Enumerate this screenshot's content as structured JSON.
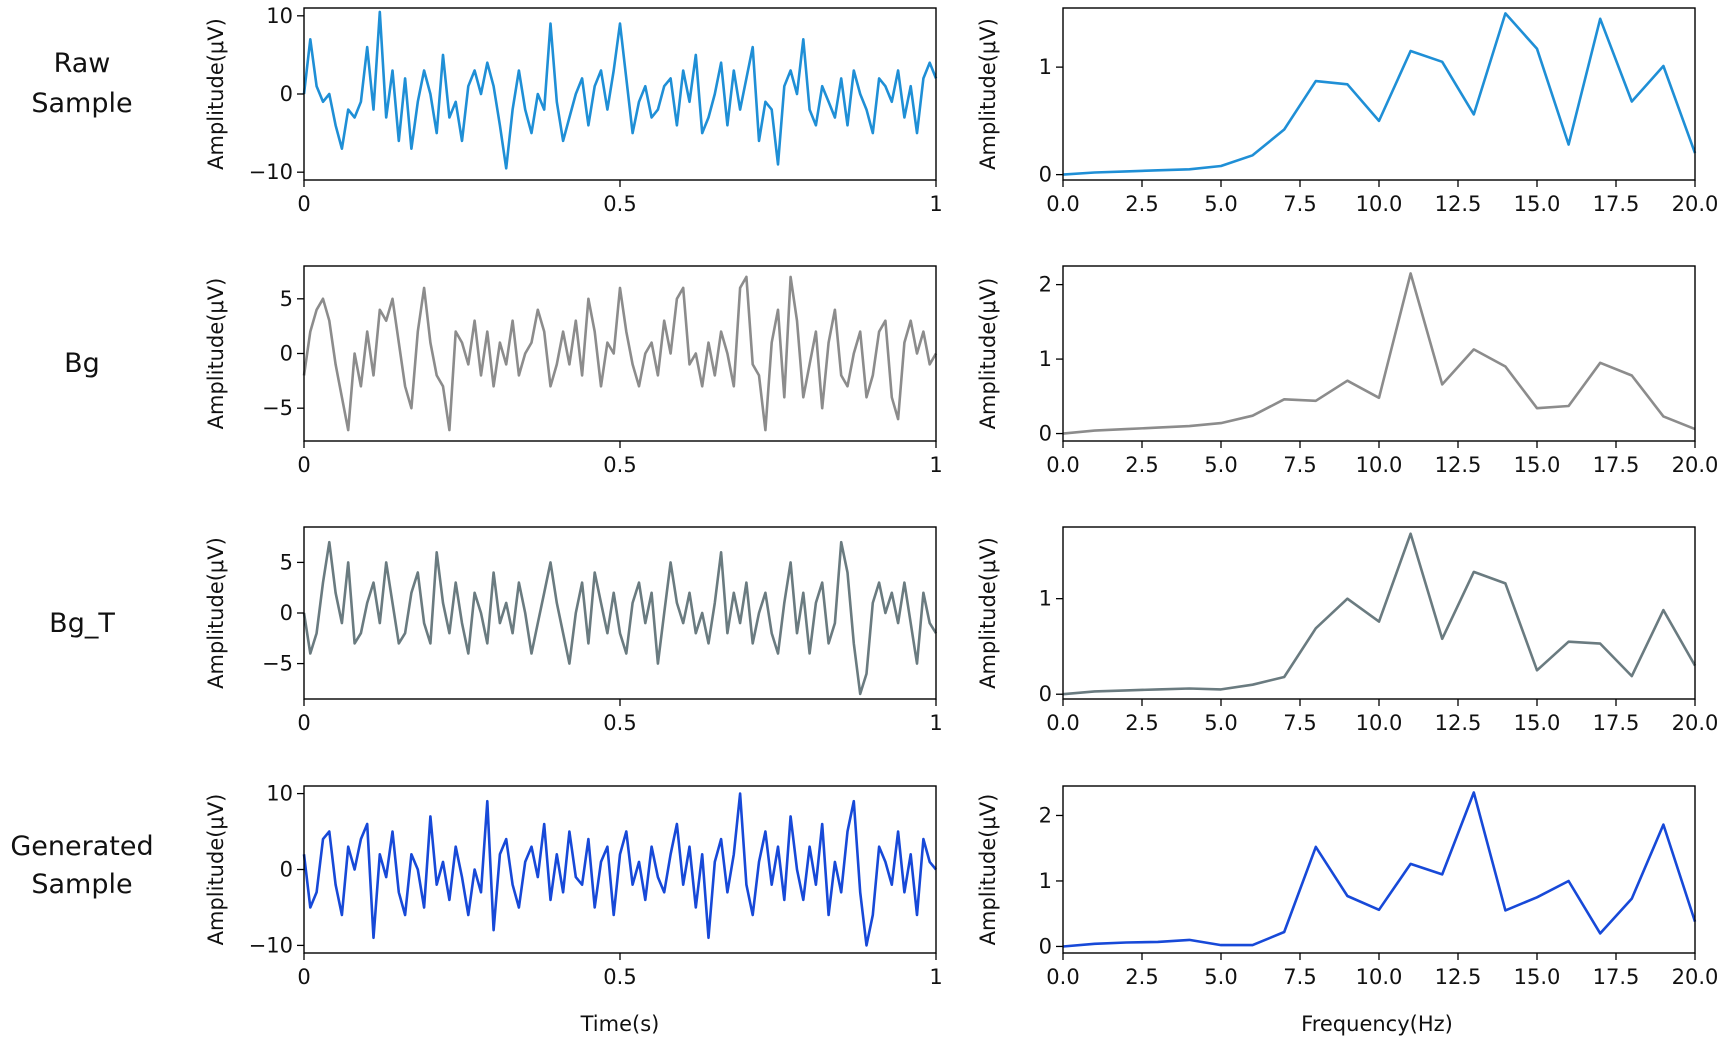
{
  "colors": {
    "raw": "#1f8fd6",
    "bg": "#8c8c8c",
    "bg_t": "#6a7b80",
    "generated": "#1749d8"
  },
  "row_labels": [
    [
      "Raw",
      "Sample"
    ],
    [
      "Bg"
    ],
    [
      "Bg_T"
    ],
    [
      "Generated",
      "Sample"
    ]
  ],
  "x_time_label": "Time(s)",
  "x_freq_label": "Frequency(Hz)",
  "chart_data": [
    {
      "type": "line",
      "panel": "time",
      "row": 0,
      "ylabel": "Amplitude(μV)",
      "xlabel": "",
      "xlim": [
        0,
        1
      ],
      "ylim": [
        -11,
        11
      ],
      "xticks": [
        0,
        0.5,
        1
      ],
      "xtick_labels": [
        "0",
        "0.5",
        "1"
      ],
      "yticks": [
        -10,
        0,
        10
      ],
      "ytick_labels": [
        "−10",
        "0",
        "10"
      ],
      "color_key": "raw",
      "x": [
        0,
        0.01,
        0.02,
        0.03,
        0.04,
        0.05,
        0.06,
        0.07,
        0.08,
        0.09,
        0.1,
        0.11,
        0.12,
        0.13,
        0.14,
        0.15,
        0.16,
        0.17,
        0.18,
        0.19,
        0.2,
        0.21,
        0.22,
        0.23,
        0.24,
        0.25,
        0.26,
        0.27,
        0.28,
        0.29,
        0.3,
        0.31,
        0.32,
        0.33,
        0.34,
        0.35,
        0.36,
        0.37,
        0.38,
        0.39,
        0.4,
        0.41,
        0.42,
        0.43,
        0.44,
        0.45,
        0.46,
        0.47,
        0.48,
        0.49,
        0.5,
        0.51,
        0.52,
        0.53,
        0.54,
        0.55,
        0.56,
        0.57,
        0.58,
        0.59,
        0.6,
        0.61,
        0.62,
        0.63,
        0.64,
        0.65,
        0.66,
        0.67,
        0.68,
        0.69,
        0.7,
        0.71,
        0.72,
        0.73,
        0.74,
        0.75,
        0.76,
        0.77,
        0.78,
        0.79,
        0.8,
        0.81,
        0.82,
        0.83,
        0.84,
        0.85,
        0.86,
        0.87,
        0.88,
        0.89,
        0.9,
        0.91,
        0.92,
        0.93,
        0.94,
        0.95,
        0.96,
        0.97,
        0.98,
        0.99,
        1
      ],
      "y": [
        0,
        7,
        1,
        -1,
        0,
        -4,
        -7,
        -2,
        -3,
        -1,
        6,
        -2,
        10.5,
        -3,
        3,
        -6,
        2,
        -7,
        -1,
        3,
        0,
        -5,
        5,
        -3,
        -1,
        -6,
        1,
        3,
        0,
        4,
        1,
        -4,
        -9.5,
        -2,
        3,
        -2,
        -5,
        0,
        -2,
        9,
        -1,
        -6,
        -3,
        0,
        2,
        -4,
        1,
        3,
        -2,
        3,
        9,
        2,
        -5,
        -1,
        1,
        -3,
        -2,
        1,
        2,
        -4,
        3,
        -1,
        5,
        -5,
        -3,
        0,
        4,
        -4,
        3,
        -2,
        2,
        6,
        -6,
        -1,
        -2,
        -9,
        1,
        3,
        0,
        7,
        -2,
        -4,
        1,
        -1,
        -3,
        2,
        -4,
        3,
        0,
        -2,
        -5,
        2,
        1,
        -1,
        3,
        -3,
        1,
        -5,
        2,
        4,
        2
      ]
    },
    {
      "type": "line",
      "panel": "freq",
      "row": 0,
      "ylabel": "Amplitude(μV)",
      "xlabel": "",
      "xlim": [
        0,
        20
      ],
      "ylim": [
        -0.05,
        1.55
      ],
      "xticks": [
        0,
        2.5,
        5,
        7.5,
        10,
        12.5,
        15,
        17.5,
        20
      ],
      "xtick_labels": [
        "0.0",
        "2.5",
        "5.0",
        "7.5",
        "10.0",
        "12.5",
        "15.0",
        "17.5",
        "20.0"
      ],
      "yticks": [
        0,
        1
      ],
      "ytick_labels": [
        "0",
        "1"
      ],
      "color_key": "raw",
      "x": [
        0,
        1,
        2,
        3,
        4,
        5,
        6,
        7,
        8,
        9,
        10,
        11,
        12,
        13,
        14,
        15,
        16,
        17,
        18,
        19,
        20
      ],
      "y": [
        0,
        0.02,
        0.03,
        0.04,
        0.05,
        0.08,
        0.18,
        0.42,
        0.87,
        0.84,
        0.5,
        1.15,
        1.05,
        0.56,
        1.5,
        1.17,
        0.28,
        1.45,
        0.68,
        1.01,
        0.2
      ]
    },
    {
      "type": "line",
      "panel": "time",
      "row": 1,
      "ylabel": "Amplitude(μV)",
      "xlabel": "",
      "xlim": [
        0,
        1
      ],
      "ylim": [
        -8,
        8
      ],
      "xticks": [
        0,
        0.5,
        1
      ],
      "xtick_labels": [
        "0",
        "0.5",
        "1"
      ],
      "yticks": [
        -5,
        0,
        5
      ],
      "ytick_labels": [
        "−5",
        "0",
        "5"
      ],
      "color_key": "bg",
      "x": [
        0,
        0.01,
        0.02,
        0.03,
        0.04,
        0.05,
        0.06,
        0.07,
        0.08,
        0.09,
        0.1,
        0.11,
        0.12,
        0.13,
        0.14,
        0.15,
        0.16,
        0.17,
        0.18,
        0.19,
        0.2,
        0.21,
        0.22,
        0.23,
        0.24,
        0.25,
        0.26,
        0.27,
        0.28,
        0.29,
        0.3,
        0.31,
        0.32,
        0.33,
        0.34,
        0.35,
        0.36,
        0.37,
        0.38,
        0.39,
        0.4,
        0.41,
        0.42,
        0.43,
        0.44,
        0.45,
        0.46,
        0.47,
        0.48,
        0.49,
        0.5,
        0.51,
        0.52,
        0.53,
        0.54,
        0.55,
        0.56,
        0.57,
        0.58,
        0.59,
        0.6,
        0.61,
        0.62,
        0.63,
        0.64,
        0.65,
        0.66,
        0.67,
        0.68,
        0.69,
        0.7,
        0.71,
        0.72,
        0.73,
        0.74,
        0.75,
        0.76,
        0.77,
        0.78,
        0.79,
        0.8,
        0.81,
        0.82,
        0.83,
        0.84,
        0.85,
        0.86,
        0.87,
        0.88,
        0.89,
        0.9,
        0.91,
        0.92,
        0.93,
        0.94,
        0.95,
        0.96,
        0.97,
        0.98,
        0.99,
        1
      ],
      "y": [
        -2,
        2,
        4,
        5,
        3,
        -1,
        -4,
        -7,
        0,
        -3,
        2,
        -2,
        4,
        3,
        5,
        1,
        -3,
        -5,
        2,
        6,
        1,
        -2,
        -3,
        -7,
        2,
        1,
        -1,
        3,
        -2,
        2,
        -3,
        1,
        -1,
        3,
        -2,
        0,
        1,
        4,
        2,
        -3,
        -1,
        2,
        -1,
        3,
        -2,
        5,
        2,
        -3,
        1,
        0,
        6,
        2,
        -1,
        -3,
        0,
        1,
        -2,
        3,
        0,
        5,
        6,
        -1,
        0,
        -3,
        1,
        -2,
        2,
        0,
        -3,
        6,
        7,
        -1,
        -2,
        -7,
        1,
        4,
        -4,
        7,
        3,
        -4,
        -1,
        2,
        -5,
        1,
        4,
        -2,
        -3,
        0,
        2,
        -4,
        -2,
        2,
        3,
        -4,
        -6,
        1,
        3,
        0,
        2,
        -1,
        0
      ]
    },
    {
      "type": "line",
      "panel": "freq",
      "row": 1,
      "ylabel": "Amplitude(μV)",
      "xlabel": "",
      "xlim": [
        0,
        20
      ],
      "ylim": [
        -0.1,
        2.25
      ],
      "xticks": [
        0,
        2.5,
        5,
        7.5,
        10,
        12.5,
        15,
        17.5,
        20
      ],
      "xtick_labels": [
        "0.0",
        "2.5",
        "5.0",
        "7.5",
        "10.0",
        "12.5",
        "15.0",
        "17.5",
        "20.0"
      ],
      "yticks": [
        0,
        1,
        2
      ],
      "ytick_labels": [
        "0",
        "1",
        "2"
      ],
      "color_key": "bg",
      "x": [
        0,
        1,
        2,
        3,
        4,
        5,
        6,
        7,
        8,
        9,
        10,
        11,
        12,
        13,
        14,
        15,
        16,
        17,
        18,
        19,
        20
      ],
      "y": [
        0,
        0.04,
        0.06,
        0.08,
        0.1,
        0.14,
        0.24,
        0.46,
        0.44,
        0.71,
        0.48,
        2.15,
        0.66,
        1.13,
        0.9,
        0.34,
        0.37,
        0.95,
        0.78,
        0.23,
        0.06
      ]
    },
    {
      "type": "line",
      "panel": "time",
      "row": 2,
      "ylabel": "Amplitude(μV)",
      "xlabel": "",
      "xlim": [
        0,
        1
      ],
      "ylim": [
        -8.5,
        8.5
      ],
      "xticks": [
        0,
        0.5,
        1
      ],
      "xtick_labels": [
        "0",
        "0.5",
        "1"
      ],
      "yticks": [
        -5,
        0,
        5
      ],
      "ytick_labels": [
        "−5",
        "0",
        "5"
      ],
      "color_key": "bg_t",
      "x": [
        0,
        0.01,
        0.02,
        0.03,
        0.04,
        0.05,
        0.06,
        0.07,
        0.08,
        0.09,
        0.1,
        0.11,
        0.12,
        0.13,
        0.14,
        0.15,
        0.16,
        0.17,
        0.18,
        0.19,
        0.2,
        0.21,
        0.22,
        0.23,
        0.24,
        0.25,
        0.26,
        0.27,
        0.28,
        0.29,
        0.3,
        0.31,
        0.32,
        0.33,
        0.34,
        0.35,
        0.36,
        0.37,
        0.38,
        0.39,
        0.4,
        0.41,
        0.42,
        0.43,
        0.44,
        0.45,
        0.46,
        0.47,
        0.48,
        0.49,
        0.5,
        0.51,
        0.52,
        0.53,
        0.54,
        0.55,
        0.56,
        0.57,
        0.58,
        0.59,
        0.6,
        0.61,
        0.62,
        0.63,
        0.64,
        0.65,
        0.66,
        0.67,
        0.68,
        0.69,
        0.7,
        0.71,
        0.72,
        0.73,
        0.74,
        0.75,
        0.76,
        0.77,
        0.78,
        0.79,
        0.8,
        0.81,
        0.82,
        0.83,
        0.84,
        0.85,
        0.86,
        0.87,
        0.88,
        0.89,
        0.9,
        0.91,
        0.92,
        0.93,
        0.94,
        0.95,
        0.96,
        0.97,
        0.98,
        0.99,
        1
      ],
      "y": [
        0,
        -4,
        -2,
        3,
        7,
        2,
        -1,
        5,
        -3,
        -2,
        1,
        3,
        -1,
        5,
        1,
        -3,
        -2,
        2,
        4,
        -1,
        -3,
        6,
        1,
        -2,
        3,
        -1,
        -4,
        2,
        0,
        -3,
        4,
        -1,
        1,
        -2,
        3,
        0,
        -4,
        -1,
        2,
        5,
        1,
        -2,
        -5,
        0,
        3,
        -3,
        4,
        1,
        -2,
        2,
        -2,
        -4,
        1,
        3,
        -1,
        2,
        -5,
        0,
        5,
        1,
        -1,
        2,
        -2,
        0,
        -3,
        1,
        6,
        -2,
        2,
        -1,
        3,
        -3,
        0,
        2,
        -2,
        -4,
        1,
        5,
        -2,
        2,
        -4,
        1,
        3,
        -3,
        -1,
        7,
        4,
        -3,
        -8,
        -6,
        1,
        3,
        0,
        2,
        -1,
        3,
        -1,
        -5,
        2,
        -1,
        -2
      ]
    },
    {
      "type": "line",
      "panel": "freq",
      "row": 2,
      "ylabel": "Amplitude(μV)",
      "xlabel": "",
      "xlim": [
        0,
        20
      ],
      "ylim": [
        -0.05,
        1.75
      ],
      "xticks": [
        0,
        2.5,
        5,
        7.5,
        10,
        12.5,
        15,
        17.5,
        20
      ],
      "xtick_labels": [
        "0.0",
        "2.5",
        "5.0",
        "7.5",
        "10.0",
        "12.5",
        "15.0",
        "17.5",
        "20.0"
      ],
      "yticks": [
        0,
        1
      ],
      "ytick_labels": [
        "0",
        "1"
      ],
      "color_key": "bg_t",
      "x": [
        0,
        1,
        2,
        3,
        4,
        5,
        6,
        7,
        8,
        9,
        10,
        11,
        12,
        13,
        14,
        15,
        16,
        17,
        18,
        19,
        20
      ],
      "y": [
        0,
        0.03,
        0.04,
        0.05,
        0.06,
        0.05,
        0.1,
        0.18,
        0.69,
        1.0,
        0.76,
        1.68,
        0.58,
        1.28,
        1.16,
        0.25,
        0.55,
        0.53,
        0.19,
        0.88,
        0.3
      ]
    },
    {
      "type": "line",
      "panel": "time",
      "row": 3,
      "ylabel": "Amplitude(μV)",
      "xlabel": "Time(s)",
      "xlim": [
        0,
        1
      ],
      "ylim": [
        -11,
        11
      ],
      "xticks": [
        0,
        0.5,
        1
      ],
      "xtick_labels": [
        "0",
        "0.5",
        "1"
      ],
      "yticks": [
        -10,
        0,
        10
      ],
      "ytick_labels": [
        "−10",
        "0",
        "10"
      ],
      "color_key": "generated",
      "x": [
        0,
        0.01,
        0.02,
        0.03,
        0.04,
        0.05,
        0.06,
        0.07,
        0.08,
        0.09,
        0.1,
        0.11,
        0.12,
        0.13,
        0.14,
        0.15,
        0.16,
        0.17,
        0.18,
        0.19,
        0.2,
        0.21,
        0.22,
        0.23,
        0.24,
        0.25,
        0.26,
        0.27,
        0.28,
        0.29,
        0.3,
        0.31,
        0.32,
        0.33,
        0.34,
        0.35,
        0.36,
        0.37,
        0.38,
        0.39,
        0.4,
        0.41,
        0.42,
        0.43,
        0.44,
        0.45,
        0.46,
        0.47,
        0.48,
        0.49,
        0.5,
        0.51,
        0.52,
        0.53,
        0.54,
        0.55,
        0.56,
        0.57,
        0.58,
        0.59,
        0.6,
        0.61,
        0.62,
        0.63,
        0.64,
        0.65,
        0.66,
        0.67,
        0.68,
        0.69,
        0.7,
        0.71,
        0.72,
        0.73,
        0.74,
        0.75,
        0.76,
        0.77,
        0.78,
        0.79,
        0.8,
        0.81,
        0.82,
        0.83,
        0.84,
        0.85,
        0.86,
        0.87,
        0.88,
        0.89,
        0.9,
        0.91,
        0.92,
        0.93,
        0.94,
        0.95,
        0.96,
        0.97,
        0.98,
        0.99,
        1
      ],
      "y": [
        2,
        -5,
        -3,
        4,
        5,
        -2,
        -6,
        3,
        0,
        4,
        6,
        -9,
        2,
        -1,
        5,
        -3,
        -6,
        2,
        0,
        -5,
        7,
        -2,
        1,
        -4,
        3,
        -1,
        -6,
        0,
        -3,
        9,
        -8,
        2,
        4,
        -2,
        -5,
        1,
        3,
        -1,
        6,
        -4,
        2,
        -3,
        5,
        -1,
        -2,
        4,
        -5,
        1,
        3,
        -6,
        2,
        5,
        -2,
        1,
        -4,
        3,
        -1,
        -3,
        2,
        6,
        -2,
        3,
        -5,
        2,
        -9,
        1,
        4,
        -3,
        2,
        10,
        -2,
        -6,
        1,
        5,
        -2,
        3,
        -4,
        7,
        0,
        -4,
        3,
        -2,
        6,
        -6,
        1,
        -3,
        5,
        9,
        -3,
        -10,
        -6,
        3,
        1,
        -2,
        5,
        -3,
        2,
        -6,
        4,
        1,
        0
      ]
    },
    {
      "type": "line",
      "panel": "freq",
      "row": 3,
      "ylabel": "Amplitude(μV)",
      "xlabel": "Frequency(Hz)",
      "xlim": [
        0,
        20
      ],
      "ylim": [
        -0.1,
        2.45
      ],
      "xticks": [
        0,
        2.5,
        5,
        7.5,
        10,
        12.5,
        15,
        17.5,
        20
      ],
      "xtick_labels": [
        "0.0",
        "2.5",
        "5.0",
        "7.5",
        "10.0",
        "12.5",
        "15.0",
        "17.5",
        "20.0"
      ],
      "yticks": [
        0,
        1,
        2
      ],
      "ytick_labels": [
        "0",
        "1",
        "2"
      ],
      "color_key": "generated",
      "x": [
        0,
        1,
        2,
        3,
        4,
        5,
        6,
        7,
        8,
        9,
        10,
        11,
        12,
        13,
        14,
        15,
        16,
        17,
        18,
        19,
        20
      ],
      "y": [
        0,
        0.04,
        0.06,
        0.07,
        0.1,
        0.02,
        0.02,
        0.22,
        1.52,
        0.77,
        0.56,
        1.26,
        1.1,
        2.35,
        0.55,
        0.75,
        1.0,
        0.2,
        0.73,
        1.86,
        0.38
      ]
    }
  ]
}
